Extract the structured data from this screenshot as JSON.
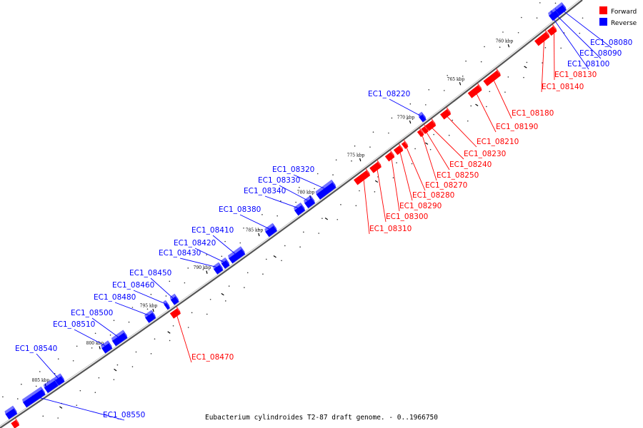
{
  "caption": "Eubacterium cylindroides T2-87 draft genome. - 0..1966750",
  "legend": {
    "forward_label": "Forward",
    "reverse_label": "Reverse",
    "forward_color": "#ff0000",
    "reverse_color": "#0000ff"
  },
  "colors": {
    "forward": "#ff0000",
    "reverse": "#0000ff",
    "backbone": "#555555"
  },
  "kbp_markers": [
    "760 kbp",
    "765 kbp",
    "770 kbp",
    "775 kbp",
    "780 kbp",
    "785 kbp",
    "790 kbp",
    "795 kbp",
    "800 kbp",
    "805 kbp"
  ],
  "genes": [
    {
      "id": "EC1_08080",
      "strand": "reverse"
    },
    {
      "id": "EC1_08090",
      "strand": "reverse"
    },
    {
      "id": "EC1_08100",
      "strand": "reverse"
    },
    {
      "id": "EC1_08130",
      "strand": "forward"
    },
    {
      "id": "EC1_08140",
      "strand": "forward"
    },
    {
      "id": "EC1_08180",
      "strand": "forward"
    },
    {
      "id": "EC1_08190",
      "strand": "forward"
    },
    {
      "id": "EC1_08210",
      "strand": "forward"
    },
    {
      "id": "EC1_08220",
      "strand": "reverse"
    },
    {
      "id": "EC1_08230",
      "strand": "forward"
    },
    {
      "id": "EC1_08240",
      "strand": "forward"
    },
    {
      "id": "EC1_08250",
      "strand": "forward"
    },
    {
      "id": "EC1_08270",
      "strand": "forward"
    },
    {
      "id": "EC1_08280",
      "strand": "forward"
    },
    {
      "id": "EC1_08290",
      "strand": "forward"
    },
    {
      "id": "EC1_08300",
      "strand": "forward"
    },
    {
      "id": "EC1_08310",
      "strand": "forward"
    },
    {
      "id": "EC1_08320",
      "strand": "reverse"
    },
    {
      "id": "EC1_08330",
      "strand": "reverse"
    },
    {
      "id": "EC1_08340",
      "strand": "reverse"
    },
    {
      "id": "EC1_08380",
      "strand": "reverse"
    },
    {
      "id": "EC1_08410",
      "strand": "reverse"
    },
    {
      "id": "EC1_08420",
      "strand": "reverse"
    },
    {
      "id": "EC1_08430",
      "strand": "reverse"
    },
    {
      "id": "EC1_08450",
      "strand": "reverse"
    },
    {
      "id": "EC1_08460",
      "strand": "reverse"
    },
    {
      "id": "EC1_08470",
      "strand": "forward"
    },
    {
      "id": "EC1_08480",
      "strand": "reverse"
    },
    {
      "id": "EC1_08500",
      "strand": "reverse"
    },
    {
      "id": "EC1_08510",
      "strand": "reverse"
    },
    {
      "id": "EC1_08540",
      "strand": "reverse"
    },
    {
      "id": "EC1_08550",
      "strand": "reverse"
    }
  ]
}
